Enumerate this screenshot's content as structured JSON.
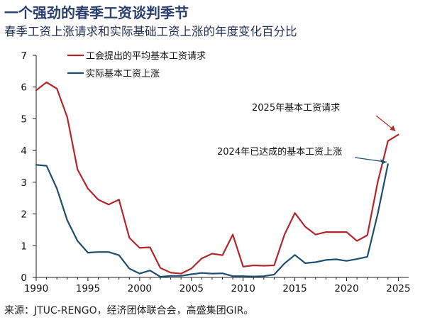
{
  "title": "一个强劲的春季工资谈判季节",
  "subtitle": "春季工资上涨请求和实际基础工资上涨的年度变化百分比",
  "source": "来源：JTUC-RENGO，经济团体联合会，高盛集团GIR。",
  "chart_data": {
    "type": "line",
    "xlim": [
      1990,
      2026
    ],
    "ylim": [
      0,
      7
    ],
    "x_ticks": [
      1990,
      1995,
      2000,
      2005,
      2010,
      2015,
      2020,
      2025
    ],
    "y_ticks": [
      0,
      1,
      2,
      3,
      4,
      5,
      6,
      7
    ],
    "legend_position": "top-left",
    "grid": false,
    "series": [
      {
        "name": "工会提出的平均基本工资请求",
        "color": "#b5252c",
        "x": [
          1990,
          1991,
          1992,
          1993,
          1994,
          1995,
          1996,
          1997,
          1998,
          1999,
          2000,
          2001,
          2002,
          2003,
          2004,
          2005,
          2006,
          2007,
          2008,
          2009,
          2010,
          2011,
          2012,
          2013,
          2014,
          2015,
          2016,
          2017,
          2018,
          2019,
          2020,
          2021,
          2022,
          2023,
          2024,
          2025
        ],
        "values": [
          5.9,
          6.15,
          5.95,
          5.05,
          3.4,
          2.8,
          2.45,
          2.3,
          2.45,
          1.25,
          0.93,
          0.95,
          0.3,
          0.15,
          0.12,
          0.28,
          0.6,
          0.75,
          0.7,
          1.35,
          0.34,
          0.38,
          0.37,
          0.38,
          1.35,
          2.03,
          1.6,
          1.35,
          1.43,
          1.43,
          1.43,
          1.15,
          1.33,
          3.0,
          4.3,
          4.5
        ]
      },
      {
        "name": "实际基本工资上涨",
        "color": "#1e4e6e",
        "x": [
          1990,
          1991,
          1992,
          1993,
          1994,
          1995,
          1996,
          1997,
          1998,
          1999,
          2000,
          2001,
          2002,
          2003,
          2004,
          2005,
          2006,
          2007,
          2008,
          2009,
          2010,
          2011,
          2012,
          2013,
          2014,
          2015,
          2016,
          2017,
          2018,
          2019,
          2020,
          2021,
          2022,
          2023,
          2024
        ],
        "values": [
          3.55,
          3.52,
          2.8,
          1.8,
          1.15,
          0.78,
          0.8,
          0.8,
          0.7,
          0.28,
          0.12,
          0.22,
          0.02,
          0.05,
          0.05,
          0.1,
          0.14,
          0.12,
          0.13,
          0.04,
          0.04,
          0.03,
          0.04,
          0.09,
          0.44,
          0.71,
          0.45,
          0.48,
          0.55,
          0.57,
          0.52,
          0.58,
          0.65,
          2.0,
          3.57
        ]
      }
    ],
    "annotations": [
      {
        "text": "2025年基本工资请求",
        "target_x": 2025,
        "target_y": 4.5,
        "color": "#b5252c"
      },
      {
        "text": "2024年已达成的基本工资上涨",
        "target_x": 2024,
        "target_y": 3.57,
        "color": "#1e4e6e"
      }
    ]
  }
}
